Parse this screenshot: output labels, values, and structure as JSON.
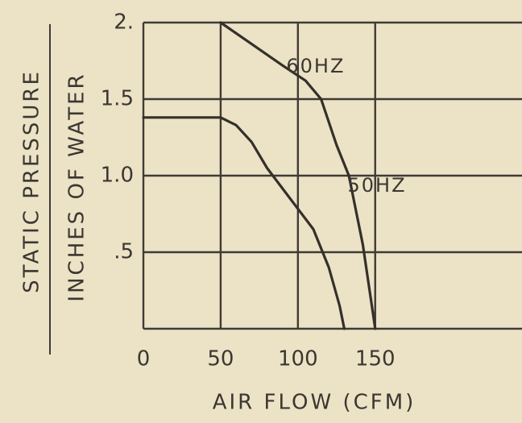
{
  "chart_data": {
    "type": "line",
    "y_label": "STATIC PRESSURE",
    "y_sublabel": "INCHES OF WATER",
    "x_label": "AIR FLOW (CFM)",
    "xlim": [
      0,
      245
    ],
    "xticks": [
      0,
      50,
      100,
      150
    ],
    "ylim": [
      0,
      2
    ],
    "yticks": [
      {
        "value": 2,
        "label": "2."
      },
      1.5,
      {
        "value": 1,
        "label": "1.0"
      },
      {
        "value": 0.5,
        "label": ".5"
      }
    ],
    "grid": true,
    "series": [
      {
        "name": "60HZ",
        "color": "#34302a",
        "x": [
          50,
          70,
          90,
          105,
          115,
          125,
          133,
          142,
          150
        ],
        "values": [
          2.0,
          1.86,
          1.72,
          1.62,
          1.5,
          1.2,
          1.0,
          0.55,
          0
        ]
      },
      {
        "name": "50HZ",
        "color": "#34302a",
        "x": [
          0,
          50,
          60,
          70,
          80,
          95,
          110,
          120,
          127,
          130
        ],
        "values": [
          1.38,
          1.38,
          1.33,
          1.22,
          1.05,
          0.85,
          0.65,
          0.4,
          0.15,
          0
        ]
      }
    ]
  }
}
